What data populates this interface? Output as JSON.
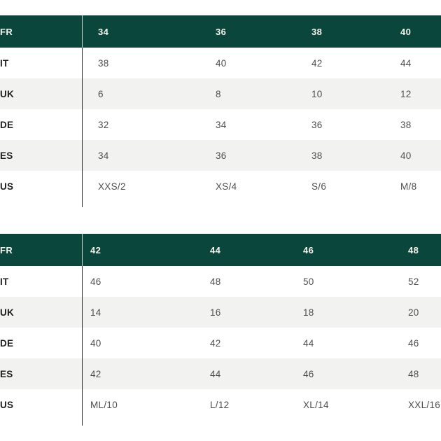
{
  "page": {
    "title": "size-conversion-chart",
    "background": "#ffffff"
  },
  "colors": {
    "header_bg": "#0a463b",
    "header_text": "#f5f3ed",
    "stripe_bg": "#f2f2f0",
    "row_bg": "#ffffff",
    "label_text": "#1e1e1c",
    "value_text": "#4e4e4c",
    "divider_dark": "#2f2f2d",
    "divider_light": "#ccd4ce"
  },
  "tables": [
    {
      "name": "size-table-34-40",
      "header": {
        "label": "FR",
        "values": [
          "34",
          "36",
          "38",
          "40"
        ]
      },
      "rows": [
        {
          "label": "IT",
          "values": [
            "38",
            "40",
            "42",
            "44"
          ]
        },
        {
          "label": "UK",
          "values": [
            "6",
            "8",
            "10",
            "12"
          ]
        },
        {
          "label": "DE",
          "values": [
            "32",
            "34",
            "36",
            "38"
          ]
        },
        {
          "label": "ES",
          "values": [
            "34",
            "36",
            "38",
            "40"
          ]
        },
        {
          "label": "US",
          "values": [
            "XXS/2",
            "XS/4",
            "S/6",
            "M/8"
          ]
        }
      ],
      "stripe_rows": [
        1,
        3
      ]
    },
    {
      "name": "size-table-42-48",
      "header": {
        "label": "FR",
        "values": [
          "42",
          "44",
          "46",
          "48"
        ]
      },
      "rows": [
        {
          "label": "IT",
          "values": [
            "46",
            "48",
            "50",
            "52"
          ]
        },
        {
          "label": "UK",
          "values": [
            "14",
            "16",
            "18",
            "20"
          ]
        },
        {
          "label": "DE",
          "values": [
            "40",
            "42",
            "44",
            "46"
          ]
        },
        {
          "label": "ES",
          "values": [
            "42",
            "44",
            "46",
            "48"
          ]
        },
        {
          "label": "US",
          "values": [
            "ML/10",
            "L/12",
            "XL/14",
            "XXL/16"
          ]
        }
      ],
      "stripe_rows": [
        1,
        3
      ]
    }
  ]
}
